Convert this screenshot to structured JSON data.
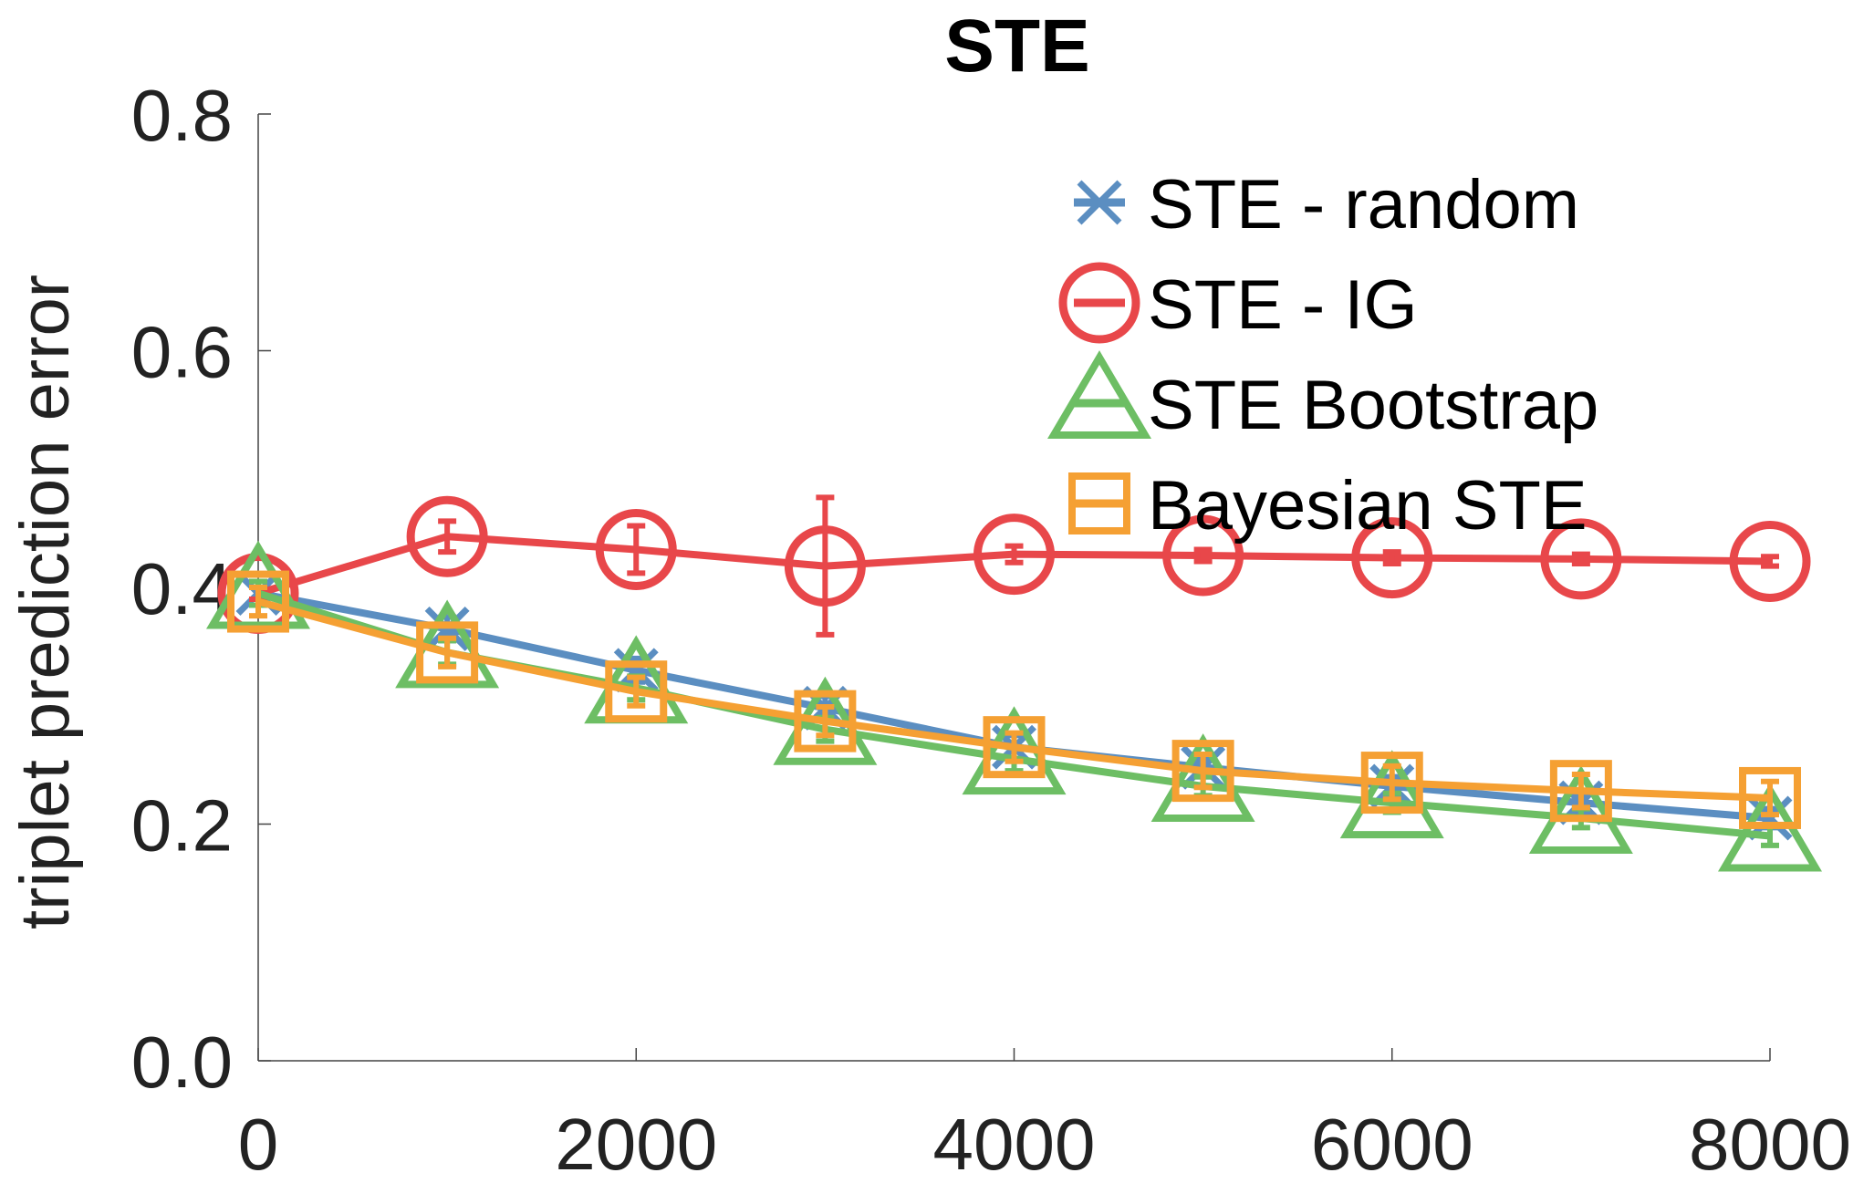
{
  "chart_data": {
    "type": "line",
    "title": "STE",
    "xlabel": "",
    "ylabel": "triplet prediction error",
    "xlim": [
      0,
      8000
    ],
    "ylim": [
      0,
      0.8
    ],
    "x_ticks": [
      "0",
      "2000",
      "4000",
      "6000",
      "8000"
    ],
    "y_ticks": [
      "0.0",
      "0.2",
      "0.4",
      "0.6",
      "0.8"
    ],
    "grid": false,
    "legend_position": "top-right",
    "x": [
      0,
      1000,
      2000,
      3000,
      4000,
      5000,
      6000,
      7000,
      8000
    ],
    "series": [
      {
        "name": "STE - random",
        "color": "#5b8ec1",
        "marker": "x",
        "values": [
          0.395,
          0.365,
          0.33,
          0.298,
          0.265,
          0.248,
          0.232,
          0.218,
          0.205
        ],
        "errors": [
          0.01,
          0.01,
          0.01,
          0.01,
          0.01,
          0.008,
          0.008,
          0.008,
          0.008
        ]
      },
      {
        "name": "STE - IG",
        "color": "#e8474a",
        "marker": "circle",
        "values": [
          0.395,
          0.443,
          0.432,
          0.418,
          0.428,
          0.427,
          0.425,
          0.424,
          0.422
        ],
        "errors": [
          0.005,
          0.013,
          0.02,
          0.058,
          0.007,
          0.005,
          0.005,
          0.004,
          0.004
        ]
      },
      {
        "name": "STE Bootstrap",
        "color": "#6dbe64",
        "marker": "triangle",
        "values": [
          0.395,
          0.345,
          0.315,
          0.28,
          0.255,
          0.232,
          0.218,
          0.205,
          0.19
        ],
        "errors": [
          0.01,
          0.01,
          0.01,
          0.01,
          0.01,
          0.008,
          0.008,
          0.008,
          0.008
        ]
      },
      {
        "name": "Bayesian STE",
        "color": "#f5a033",
        "marker": "square",
        "values": [
          0.388,
          0.345,
          0.312,
          0.287,
          0.265,
          0.245,
          0.235,
          0.228,
          0.222
        ],
        "errors": [
          0.012,
          0.012,
          0.012,
          0.012,
          0.012,
          0.014,
          0.014,
          0.014,
          0.014
        ]
      }
    ]
  }
}
